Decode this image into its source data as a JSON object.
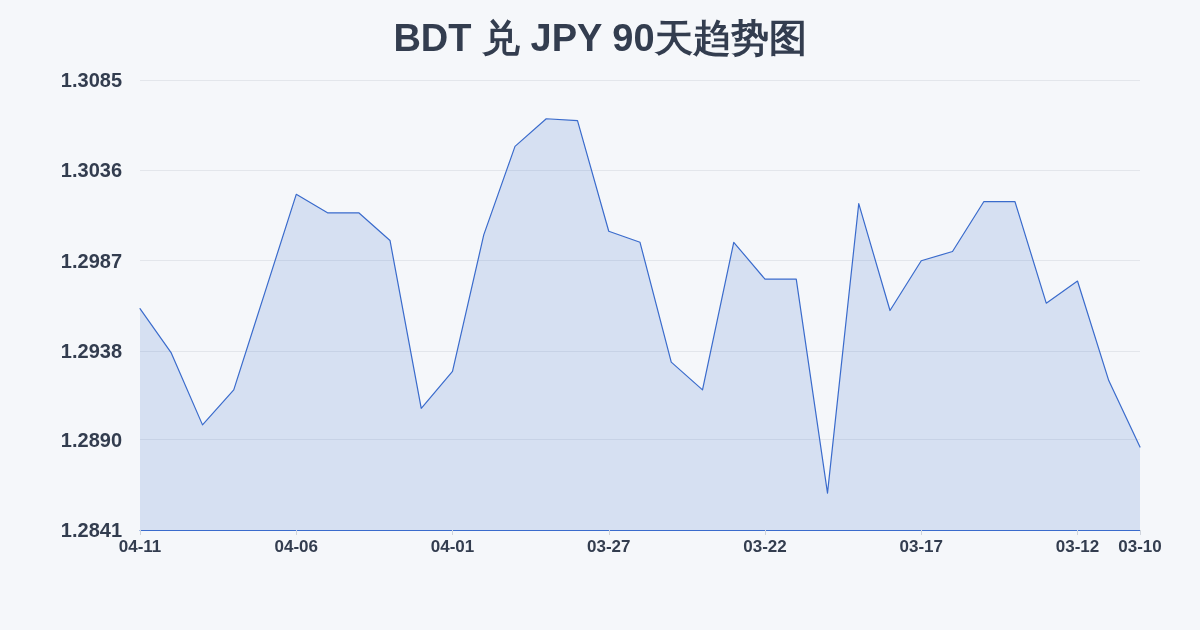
{
  "chart_data": {
    "type": "area",
    "title": "BDT 兑 JPY 90天趋势图",
    "categories": [
      "04-11",
      null,
      null,
      null,
      null,
      "04-06",
      null,
      null,
      null,
      null,
      "04-01",
      null,
      null,
      null,
      null,
      "03-27",
      null,
      null,
      null,
      null,
      "03-22",
      null,
      null,
      null,
      null,
      "03-17",
      null,
      null,
      null,
      null,
      "03-12",
      null,
      "03-10"
    ],
    "values": [
      1.2961,
      1.2937,
      1.2898,
      1.2917,
      1.297,
      1.3023,
      1.3013,
      1.3013,
      1.2998,
      1.2907,
      1.2927,
      1.3001,
      1.3049,
      1.3064,
      1.3063,
      1.3003,
      1.2997,
      1.2932,
      1.2917,
      1.2997,
      1.2977,
      1.2977,
      1.2861,
      1.3018,
      1.296,
      1.2987,
      1.2992,
      1.3019,
      1.3019,
      1.2964,
      1.2976,
      1.2922,
      1.2886
    ],
    "color": "#3a6bcc",
    "ylim": [
      1.2841,
      1.3085
    ],
    "yticks": [
      1.2841,
      {
        "value": 1.289,
        "label": "1.2890"
      },
      1.2938,
      1.2987,
      1.3036,
      1.3085
    ],
    "grid": "y"
  }
}
